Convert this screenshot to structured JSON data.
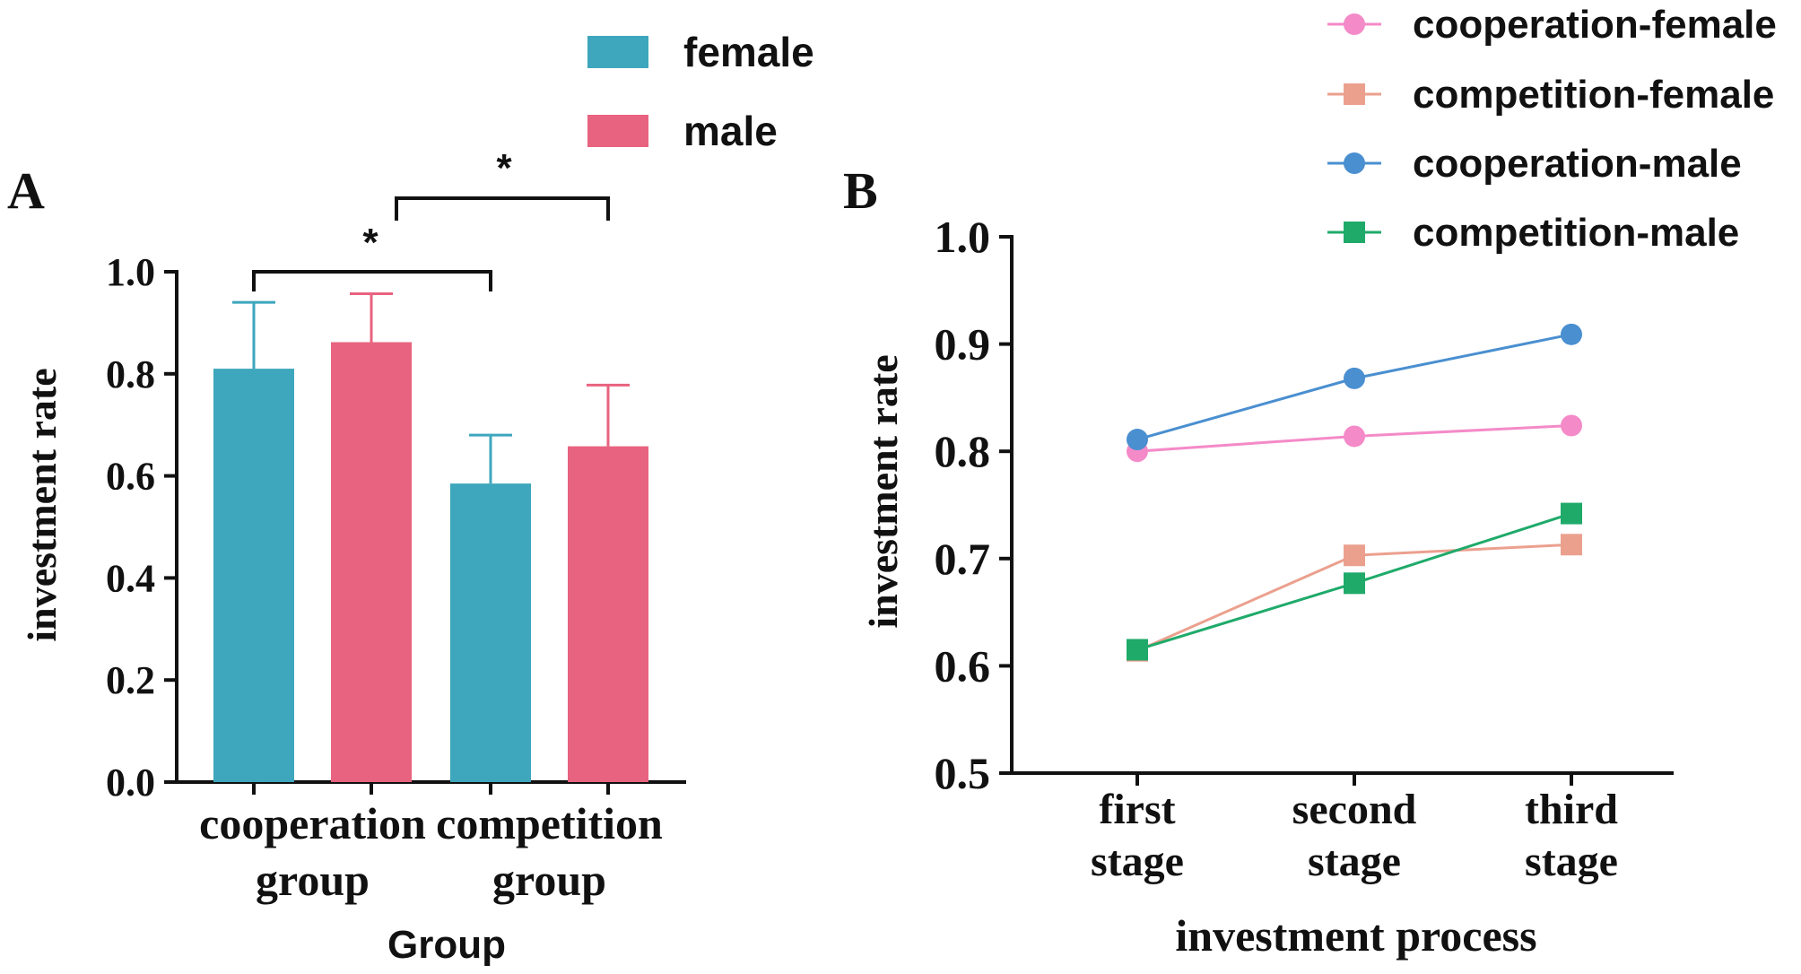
{
  "chart_data": [
    {
      "panel": "A",
      "type": "bar",
      "categories": [
        "cooperation group",
        "competition group"
      ],
      "category_lines": [
        [
          "cooperation",
          "group"
        ],
        [
          "competition",
          "group"
        ]
      ],
      "series": [
        {
          "name": "female",
          "color": "#3ea6bd",
          "values": [
            0.81,
            0.585
          ],
          "errors": [
            0.13,
            0.095
          ]
        },
        {
          "name": "male",
          "color": "#e8637f",
          "values": [
            0.862,
            0.658
          ],
          "errors": [
            0.095,
            0.12
          ]
        }
      ],
      "xlabel": "Group",
      "ylabel": "investment rate",
      "ylim": [
        0,
        1.0
      ],
      "yticks": [
        0.0,
        0.2,
        0.4,
        0.6,
        0.8,
        1.0
      ],
      "ytick_labels": [
        "0.0",
        "0.2",
        "0.4",
        "0.6",
        "0.8",
        "1.0"
      ],
      "legend": [
        "female",
        "male"
      ],
      "legend_position": "top",
      "significance": [
        {
          "label": "*",
          "from": "cooperation group / female",
          "to": "competition group / female"
        },
        {
          "label": "*",
          "from": "cooperation group / male",
          "to": "competition group / male"
        }
      ]
    },
    {
      "panel": "B",
      "type": "line",
      "categories": [
        "first stage",
        "second stage",
        "third stage"
      ],
      "category_lines": [
        [
          "first",
          "stage"
        ],
        [
          "second",
          "stage"
        ],
        [
          "third",
          "stage"
        ]
      ],
      "series": [
        {
          "name": "cooperation-female",
          "color": "#f48ac8",
          "marker": "circle",
          "values": [
            0.8,
            0.814,
            0.824
          ]
        },
        {
          "name": "competition-female",
          "color": "#eba08e",
          "marker": "square",
          "values": [
            0.614,
            0.703,
            0.713
          ]
        },
        {
          "name": "cooperation-male",
          "color": "#4a8fd0",
          "marker": "circle",
          "values": [
            0.811,
            0.868,
            0.909
          ]
        },
        {
          "name": "competition-male",
          "color": "#1faa6a",
          "marker": "square",
          "values": [
            0.615,
            0.677,
            0.742
          ]
        }
      ],
      "xlabel": "investment process",
      "ylabel": "investment rate",
      "ylim": [
        0.5,
        1.0
      ],
      "yticks": [
        0.5,
        0.6,
        0.7,
        0.8,
        0.9,
        1.0
      ],
      "ytick_labels": [
        "0.5",
        "0.6",
        "0.7",
        "0.8",
        "0.9",
        "1.0"
      ],
      "legend_position": "top-right"
    }
  ],
  "panel_labels": [
    "A",
    "B"
  ]
}
